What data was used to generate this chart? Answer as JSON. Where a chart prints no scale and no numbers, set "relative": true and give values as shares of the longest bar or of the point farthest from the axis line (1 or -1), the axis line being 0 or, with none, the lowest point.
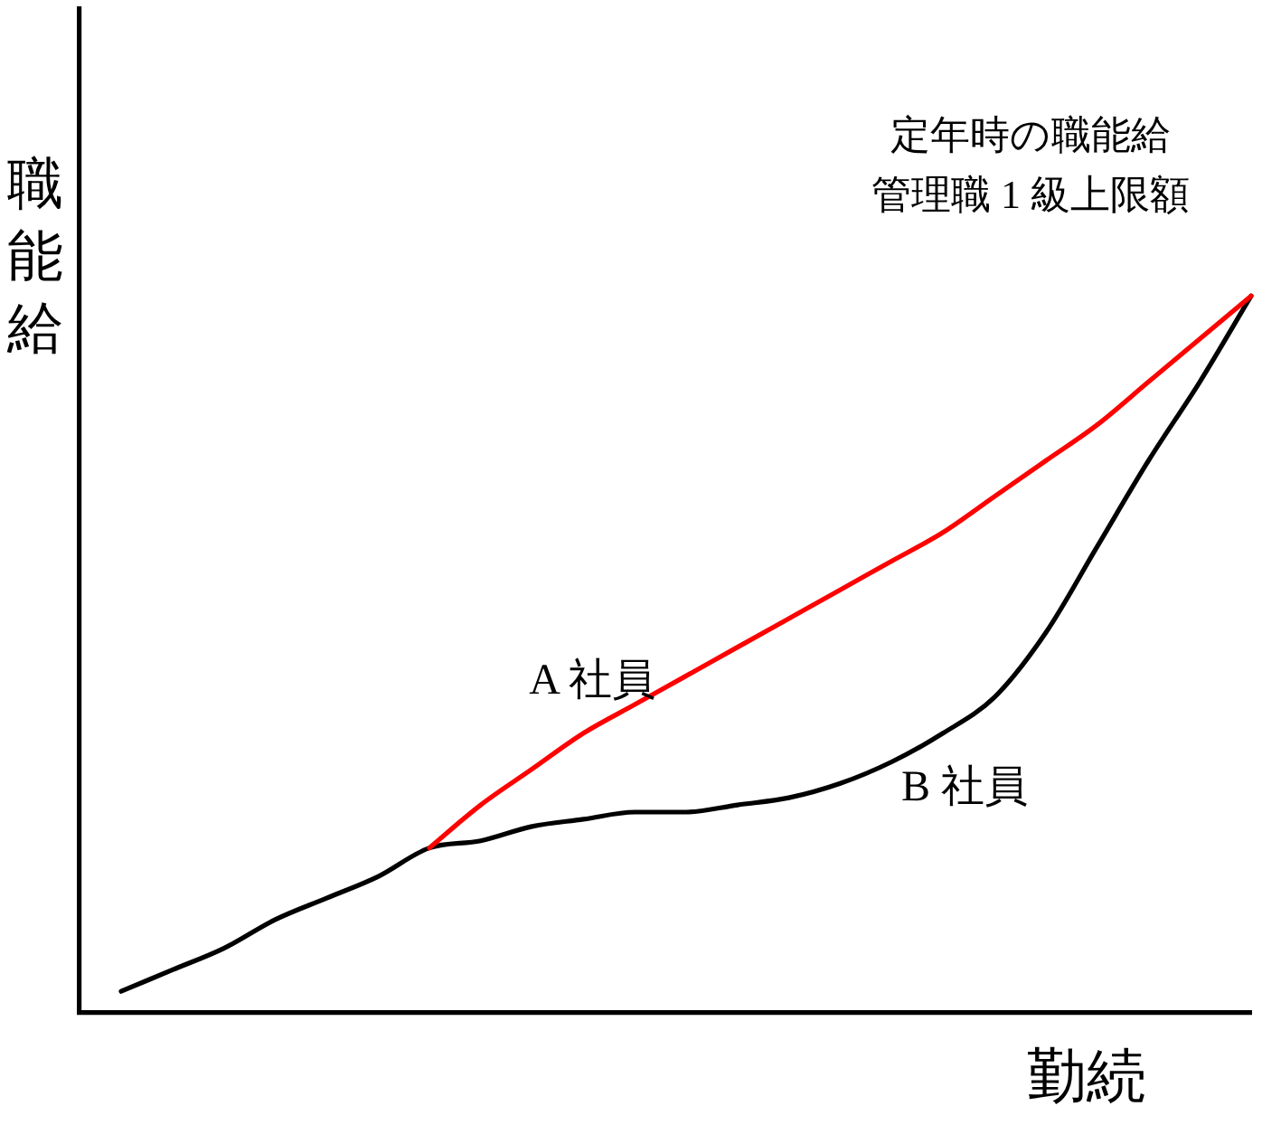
{
  "chart_data": {
    "type": "line",
    "relative": true,
    "xlabel": "勤続",
    "ylabel": "職能給",
    "annotations": [
      "定年時の職能給",
      "管理職 1 級上限額"
    ],
    "categories": [
      null,
      null,
      null,
      null,
      null,
      null,
      null,
      null,
      null,
      null,
      null,
      null,
      null,
      null,
      null,
      null,
      null,
      null,
      null,
      null,
      null,
      null,
      null
    ],
    "series": [
      {
        "name": "A 社員",
        "color": "#ff0000",
        "values": [
          null,
          null,
          null,
          null,
          null,
          null,
          0.23,
          0.29,
          0.34,
          0.39,
          0.43,
          0.47,
          0.51,
          0.55,
          0.59,
          0.63,
          0.67,
          0.72,
          0.77,
          0.82,
          0.88,
          0.94,
          1
        ]
      },
      {
        "name": "B 社員",
        "color": "#000000",
        "values": [
          0.03,
          0.06,
          0.09,
          0.13,
          0.16,
          0.19,
          0.23,
          0.24,
          0.26,
          0.27,
          0.28,
          0.28,
          0.29,
          0.3,
          0.32,
          0.35,
          0.39,
          0.44,
          0.53,
          0.65,
          0.77,
          0.88,
          1
        ]
      }
    ],
    "marker": "none"
  }
}
